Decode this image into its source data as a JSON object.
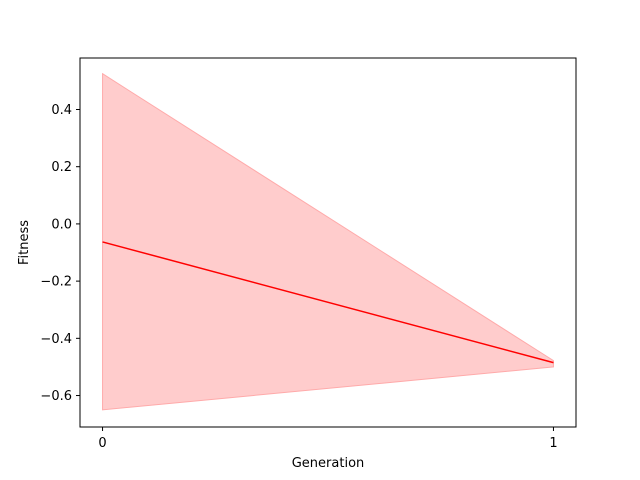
{
  "chart_data": {
    "type": "line",
    "title": "",
    "xlabel": "Generation",
    "ylabel": "Fitness",
    "x": [
      0,
      1
    ],
    "xticks": [
      0,
      1
    ],
    "xlim": [
      -0.05,
      1.05
    ],
    "yticks": [
      -0.6,
      -0.4,
      -0.2,
      0.0,
      0.2,
      0.4
    ],
    "ytick_labels": [
      "−0.6",
      "−0.4",
      "−0.2",
      "0.0",
      "0.2",
      "0.4"
    ],
    "ylim": [
      -0.71,
      0.58
    ],
    "grid": false,
    "series": [
      {
        "values": [
          -0.063,
          -0.485
        ],
        "band_lower": [
          -0.65,
          -0.5
        ],
        "band_upper": [
          0.525,
          -0.478
        ],
        "line_color": "#ff0000",
        "band_color": "#ffcccc",
        "band_edge_color": "#ffaaaa"
      }
    ]
  }
}
